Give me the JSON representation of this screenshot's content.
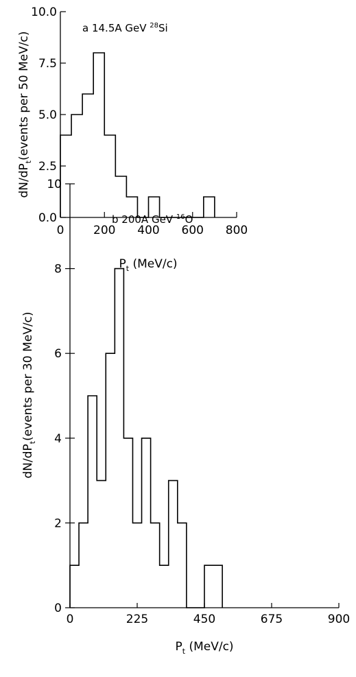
{
  "chart_data": [
    {
      "type": "bar",
      "panel": "a",
      "title": {
        "prefix": "a  14.5A GeV ",
        "sup": "28",
        "suffix": "Si"
      },
      "xlabel": {
        "main": "P",
        "sub": "t",
        "rest": " (MeV/c)"
      },
      "ylabel": {
        "main": "dN/dP",
        "sub": "t",
        "rest": "(events per 50 MeV/c)"
      },
      "xlim": [
        0,
        800
      ],
      "ylim": [
        0,
        10
      ],
      "bin_width": 50,
      "bin_edges": [
        0,
        50,
        100,
        150,
        200,
        250,
        300,
        350,
        400,
        450,
        500,
        550,
        600,
        650,
        700
      ],
      "values": [
        4,
        5,
        6,
        8,
        4,
        2,
        1,
        0,
        1,
        0,
        0,
        0,
        0,
        1
      ],
      "x_ticks": [
        {
          "value": 0,
          "label": "0"
        },
        {
          "value": 200,
          "label": "200"
        },
        {
          "value": 400,
          "label": "400"
        },
        {
          "value": 600,
          "label": "600"
        },
        {
          "value": 800,
          "label": "800"
        }
      ],
      "y_ticks": [
        {
          "value": 0,
          "label": "0.0"
        },
        {
          "value": 2.5,
          "label": "2.5"
        },
        {
          "value": 5,
          "label": "5.0"
        },
        {
          "value": 7.5,
          "label": "7.5"
        },
        {
          "value": 10,
          "label": "10.0"
        }
      ]
    },
    {
      "type": "bar",
      "panel": "b",
      "title": {
        "prefix": "b   200A  GeV  ",
        "sup": "16",
        "suffix": "O"
      },
      "xlabel": {
        "main": "P",
        "sub": "t",
        "rest": "  (MeV/c)"
      },
      "ylabel": {
        "main": "dN/dP",
        "sub": "t",
        "rest": "(events  per  30  MeV/c)"
      },
      "xlim": [
        0,
        900
      ],
      "ylim": [
        0,
        10
      ],
      "bin_width": 30,
      "bin_edges": [
        0,
        30,
        60,
        90,
        120,
        150,
        180,
        210,
        240,
        270,
        300,
        330,
        360,
        390,
        420,
        450,
        480,
        510
      ],
      "values": [
        1,
        2,
        5,
        3,
        6,
        8,
        4,
        2,
        4,
        2,
        1,
        3,
        2,
        0,
        0,
        1,
        1
      ],
      "x_ticks": [
        {
          "value": 0,
          "label": "0"
        },
        {
          "value": 225,
          "label": "225"
        },
        {
          "value": 450,
          "label": "450"
        },
        {
          "value": 675,
          "label": "675"
        },
        {
          "value": 900,
          "label": "900"
        }
      ],
      "y_ticks": [
        {
          "value": 0,
          "label": "0"
        },
        {
          "value": 2,
          "label": "2"
        },
        {
          "value": 4,
          "label": "4"
        },
        {
          "value": 6,
          "label": "6"
        },
        {
          "value": 8,
          "label": "8"
        },
        {
          "value": 10,
          "label": "10"
        }
      ]
    }
  ]
}
